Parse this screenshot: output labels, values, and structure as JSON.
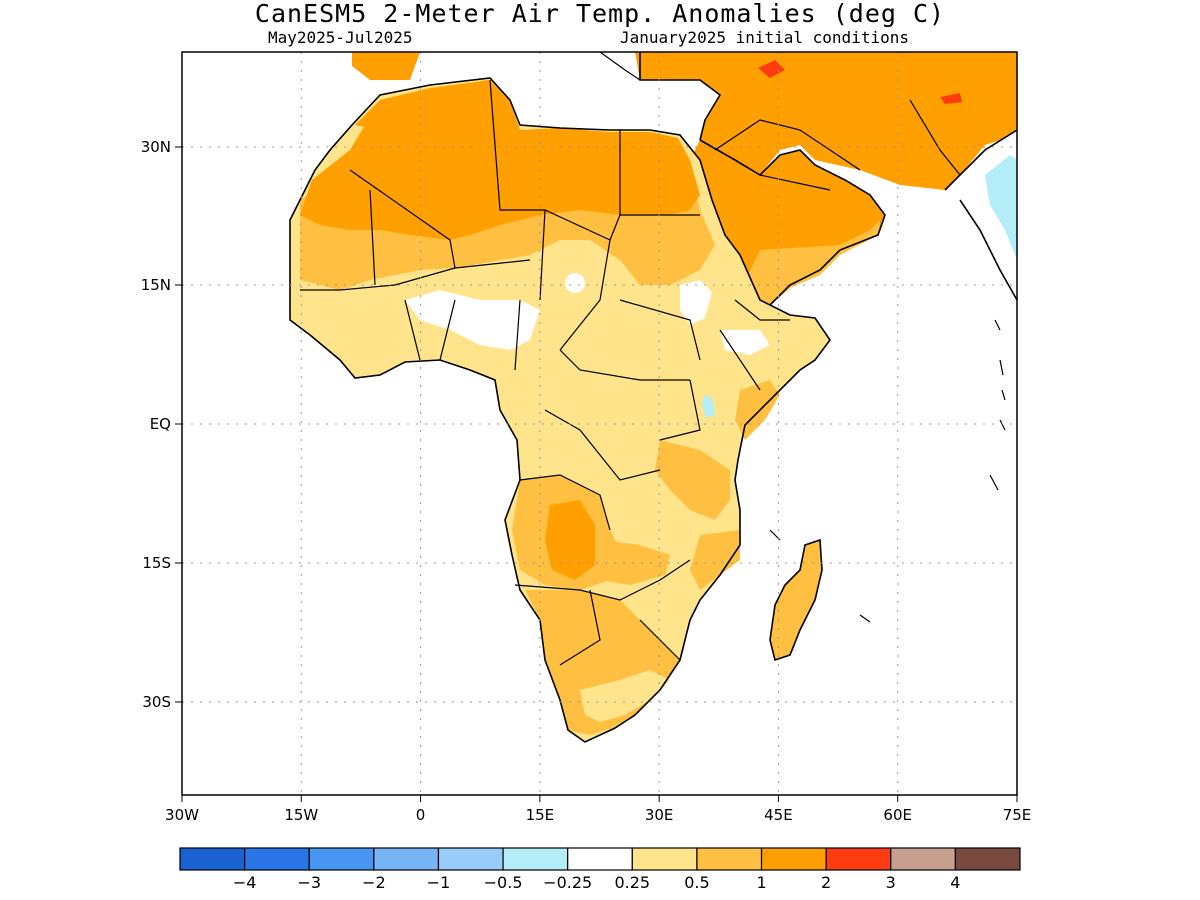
{
  "header": {
    "title": "CanESM5 2-Meter Air Temp. Anomalies (deg C)",
    "period": "May2025-Jul2025",
    "initial_conditions": "January2025 initial conditions"
  },
  "map": {
    "region": "Africa",
    "lat_labels": [
      "30N",
      "15N",
      "EQ",
      "15S",
      "30S"
    ],
    "lat_values": [
      30,
      15,
      0,
      -15,
      -30
    ],
    "lon_labels": [
      "30W",
      "15W",
      "0",
      "15E",
      "30E",
      "45E",
      "60E",
      "75E"
    ],
    "lon_values": [
      -30,
      -15,
      0,
      15,
      30,
      45,
      60,
      75
    ],
    "lon_range": [
      -30,
      75
    ],
    "lat_range": [
      -40,
      40
    ],
    "gridlines": "dotted"
  },
  "colorbar": {
    "colors": [
      "#1a62d0",
      "#2a75e8",
      "#4796f4",
      "#78b5f6",
      "#99cdf9",
      "#b2edf8",
      "#ffffff",
      "#ffe48c",
      "#ffbf40",
      "#ffa000",
      "#ff3c10",
      "#c8a090",
      "#7a4a40"
    ],
    "labels": [
      "−4",
      "−3",
      "−2",
      "−1",
      "−0.5",
      "−0.25",
      "0.25",
      "0.5",
      "1",
      "2",
      "3",
      "4"
    ]
  },
  "anomaly_colors": {
    "land_default": "#ffe48c",
    "warm_0_5_1": "#ffbf40",
    "warm_1_2": "#ffa000",
    "warm_2_3": "#ff3c10",
    "near_zero": "#ffffff",
    "cool_minus_0_25": "#b2edf8"
  }
}
